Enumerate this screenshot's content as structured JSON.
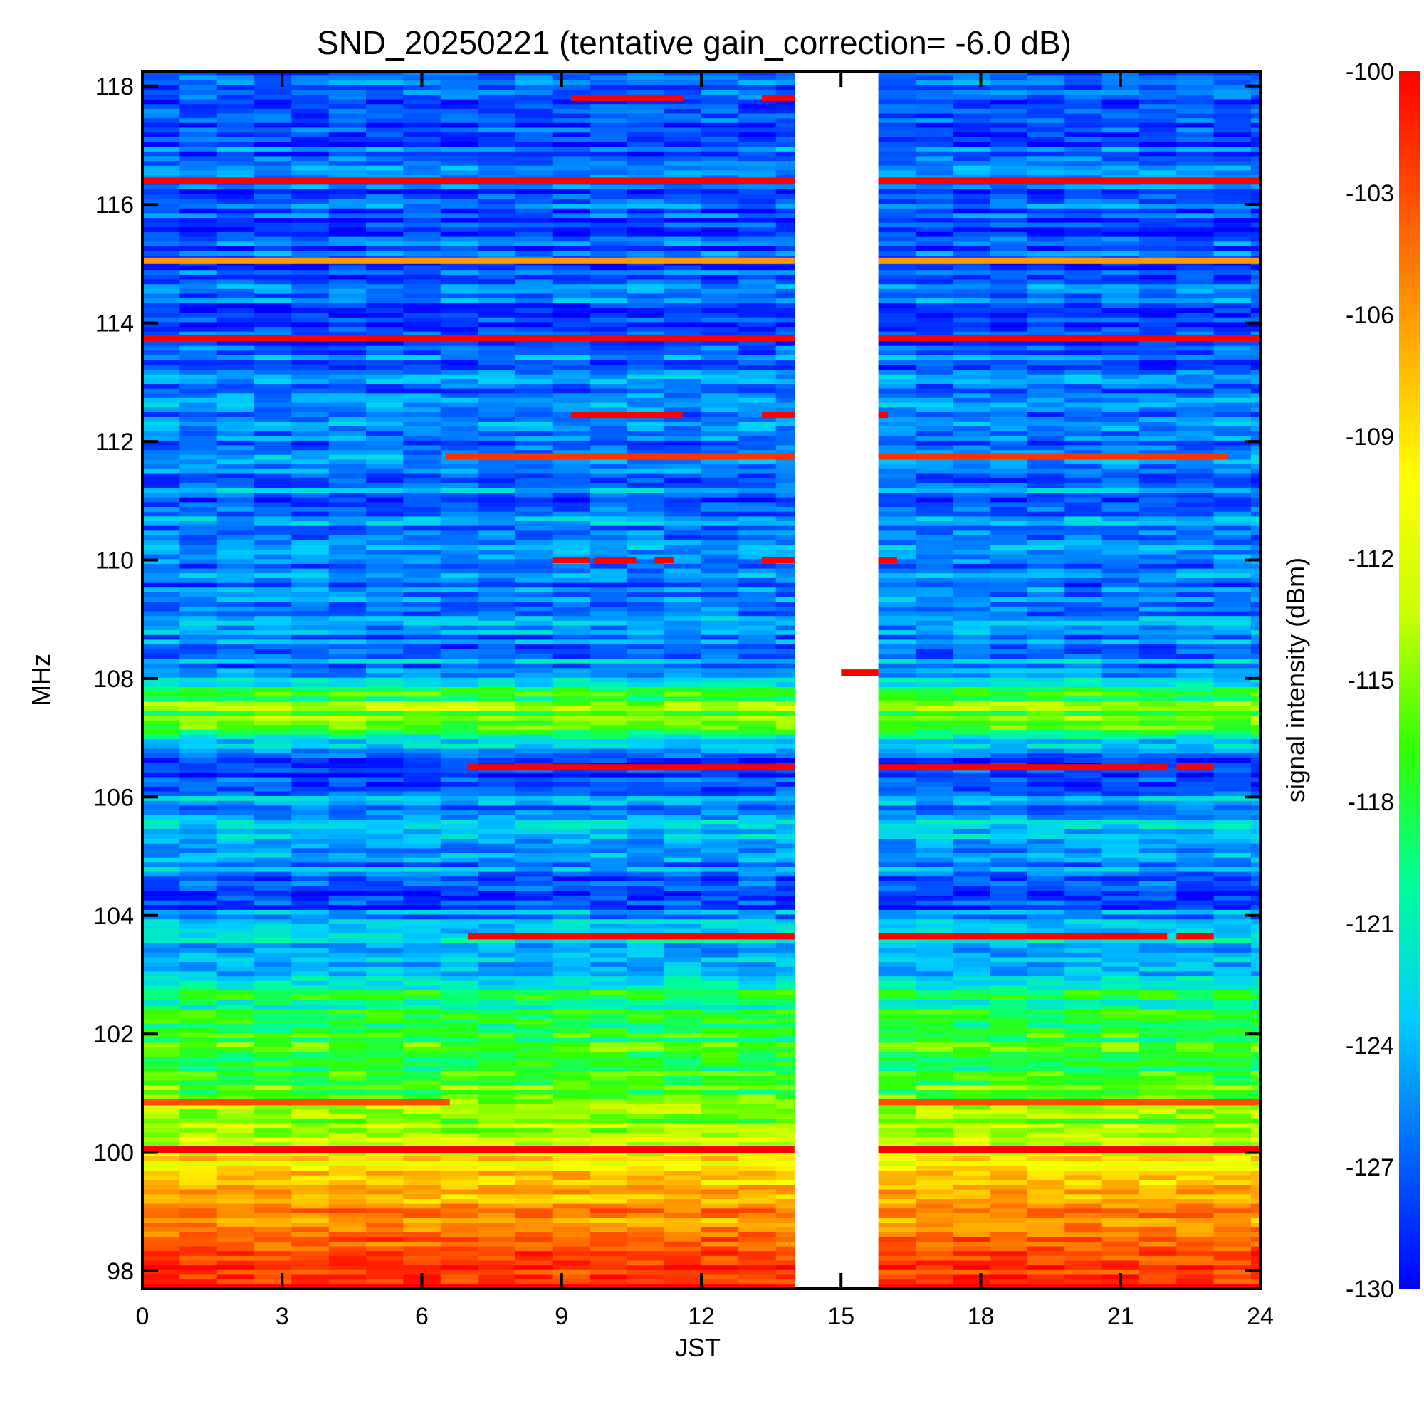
{
  "chart_data": {
    "type": "heatmap",
    "title": "SND_20250221 (tentative gain_correction= -6.0 dB)",
    "xlabel": "JST",
    "ylabel": "MHz",
    "colorbar_label": "signal intensity (dBm)",
    "xlim": [
      0,
      24
    ],
    "ylim": [
      97.7,
      118.25
    ],
    "x_ticks": [
      "0",
      "3",
      "6",
      "9",
      "12",
      "15",
      "18",
      "21",
      "24"
    ],
    "x_tick_values": [
      0,
      3,
      6,
      9,
      12,
      15,
      18,
      21,
      24
    ],
    "y_ticks": [
      "98",
      "100",
      "102",
      "104",
      "106",
      "108",
      "110",
      "112",
      "114",
      "116",
      "118"
    ],
    "y_tick_values": [
      98,
      100,
      102,
      104,
      106,
      108,
      110,
      112,
      114,
      116,
      118
    ],
    "colorbar_ticks": [
      "-100",
      "-103",
      "-106",
      "-109",
      "-112",
      "-115",
      "-118",
      "-121",
      "-124",
      "-127",
      "-130"
    ],
    "colorbar_tick_values": [
      -100,
      -103,
      -106,
      -109,
      -112,
      -115,
      -118,
      -121,
      -124,
      -127,
      -130
    ],
    "colorbar_range": [
      -130,
      -100
    ],
    "colorscale": [
      "#0000ff",
      "#0066ff",
      "#00ccff",
      "#00ff99",
      "#33ff00",
      "#ccff00",
      "#ffff00",
      "#ffaa00",
      "#ff5500",
      "#ff0000"
    ],
    "data_gap_jst": [
      14.0,
      15.8
    ],
    "background_profile_mhz_dbm": [
      [
        97.7,
        -101
      ],
      [
        98.0,
        -102
      ],
      [
        98.5,
        -104
      ],
      [
        99.0,
        -106
      ],
      [
        99.5,
        -108
      ],
      [
        100.0,
        -111
      ],
      [
        100.5,
        -114
      ],
      [
        101.0,
        -116
      ],
      [
        101.5,
        -117
      ],
      [
        102.0,
        -118
      ],
      [
        102.5,
        -119
      ],
      [
        103.0,
        -122
      ],
      [
        103.5,
        -123
      ],
      [
        104.0,
        -126
      ],
      [
        104.5,
        -127
      ],
      [
        105.0,
        -124
      ],
      [
        105.5,
        -124
      ],
      [
        106.0,
        -124
      ],
      [
        106.5,
        -128
      ],
      [
        107.0,
        -121
      ],
      [
        107.5,
        -114
      ],
      [
        107.8,
        -120
      ],
      [
        108.0,
        -125
      ],
      [
        109.0,
        -126
      ],
      [
        110.0,
        -126
      ],
      [
        111.0,
        -126
      ],
      [
        112.0,
        -126
      ],
      [
        113.0,
        -126
      ],
      [
        114.0,
        -127
      ],
      [
        115.0,
        -127
      ],
      [
        116.0,
        -127
      ],
      [
        117.0,
        -127
      ],
      [
        118.25,
        -127
      ]
    ],
    "strong_signals": [
      {
        "freq_mhz": 116.4,
        "segments": [
          [
            0,
            14
          ],
          [
            15.8,
            24
          ]
        ],
        "dbm": -100
      },
      {
        "freq_mhz": 115.05,
        "segments": [
          [
            0,
            14
          ],
          [
            15.8,
            24
          ]
        ],
        "dbm": -106
      },
      {
        "freq_mhz": 113.75,
        "segments": [
          [
            0,
            14
          ],
          [
            15.8,
            24
          ]
        ],
        "dbm": -100
      },
      {
        "freq_mhz": 117.8,
        "segments": [
          [
            9.2,
            11.6
          ],
          [
            13.3,
            14
          ]
        ],
        "dbm": -100
      },
      {
        "freq_mhz": 112.45,
        "segments": [
          [
            9.2,
            11.6
          ],
          [
            13.3,
            14
          ],
          [
            15.8,
            16.0
          ]
        ],
        "dbm": -100
      },
      {
        "freq_mhz": 111.75,
        "segments": [
          [
            6.5,
            14
          ],
          [
            15.8,
            23.3
          ]
        ],
        "dbm": -102
      },
      {
        "freq_mhz": 110.0,
        "segments": [
          [
            8.8,
            9.6
          ],
          [
            9.7,
            10.6
          ],
          [
            11.0,
            11.4
          ],
          [
            13.3,
            14
          ],
          [
            15.8,
            16.2
          ]
        ],
        "dbm": -100
      },
      {
        "freq_mhz": 108.1,
        "segments": [
          [
            15.0,
            15.8
          ]
        ],
        "dbm": -100
      },
      {
        "freq_mhz": 106.5,
        "segments": [
          [
            7.0,
            14
          ],
          [
            15.8,
            22.0
          ],
          [
            22.2,
            23.0
          ]
        ],
        "dbm": -100
      },
      {
        "freq_mhz": 103.65,
        "segments": [
          [
            7.0,
            14
          ],
          [
            15.8,
            22.0
          ],
          [
            22.2,
            23.0
          ]
        ],
        "dbm": -100
      },
      {
        "freq_mhz": 100.05,
        "segments": [
          [
            0,
            14
          ],
          [
            15.8,
            24
          ]
        ],
        "dbm": -100
      },
      {
        "freq_mhz": 100.85,
        "segments": [
          [
            0,
            6.6
          ],
          [
            15.8,
            24
          ]
        ],
        "dbm": -103
      }
    ]
  }
}
